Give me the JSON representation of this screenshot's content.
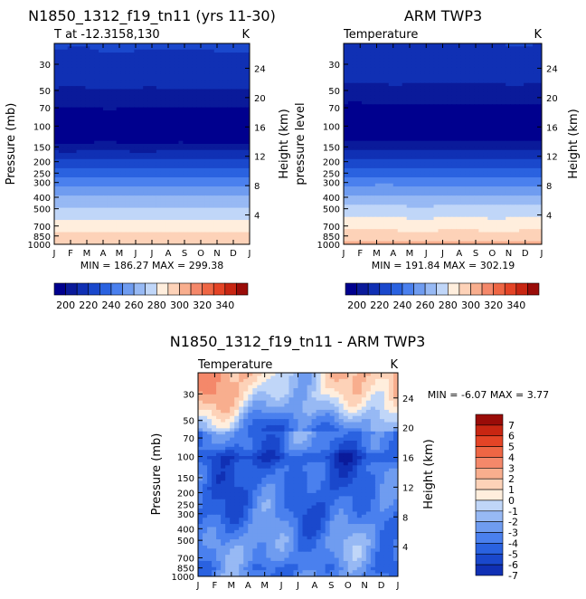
{
  "chart_data": [
    {
      "type": "heatmap",
      "title": "N1850_1312_f19_tn11 (yrs 11-30)",
      "subtitle_left": "T at -12.3158,130",
      "subtitle_right": "K",
      "xlabel": "",
      "ylabel": "Pressure (mb)",
      "ylabel_right": "Height (km)",
      "x_ticks": [
        "J",
        "F",
        "M",
        "A",
        "M",
        "J",
        "J",
        "A",
        "S",
        "O",
        "N",
        "D",
        "J"
      ],
      "y_ticks": [
        30,
        50,
        70,
        100,
        150,
        200,
        250,
        300,
        400,
        500,
        700,
        850,
        1000
      ],
      "height_ticks": [
        24,
        20,
        16,
        12,
        8,
        4
      ],
      "ylim": [
        1000,
        20
      ],
      "min_max": "MIN = 186.27 MAX = 299.38",
      "colorbar_labels": [
        "200",
        "220",
        "240",
        "260",
        "280",
        "300",
        "320",
        "340"
      ],
      "levels": [
        190,
        200,
        210,
        220,
        230,
        240,
        250,
        260,
        270,
        280,
        290,
        300,
        310,
        320,
        330,
        340,
        350
      ],
      "palette": [
        "#00008e",
        "#0a1a9a",
        "#1030b4",
        "#1a48cc",
        "#2a62e0",
        "#4a80ee",
        "#6f9cf0",
        "#97b9f4",
        "#c0d6f8",
        "#ffeedd",
        "#fdd2b8",
        "#f8ae8e",
        "#f4886a",
        "#ee6644",
        "#e44426",
        "#c82612",
        "#9a0c08"
      ],
      "profile_pressure": [
        20,
        30,
        40,
        50,
        60,
        70,
        85,
        100,
        125,
        150,
        175,
        200,
        225,
        250,
        275,
        300,
        350,
        400,
        450,
        500,
        600,
        700,
        800,
        850,
        925,
        1000
      ],
      "profile_values": [
        221,
        218,
        214,
        209,
        205,
        200,
        196,
        192,
        194,
        205,
        214,
        222,
        228,
        235,
        240,
        246,
        254,
        261,
        266,
        272,
        278,
        284,
        290,
        293,
        297,
        299
      ]
    },
    {
      "type": "heatmap",
      "title": "ARM TWP3",
      "subtitle_left": "Temperature",
      "subtitle_right": "K",
      "xlabel": "",
      "ylabel": "pressure level",
      "ylabel_right": "Height (km)",
      "x_ticks": [
        "J",
        "F",
        "M",
        "A",
        "M",
        "J",
        "J",
        "A",
        "S",
        "O",
        "N",
        "D",
        "J"
      ],
      "y_ticks": [
        30,
        50,
        70,
        100,
        150,
        200,
        250,
        300,
        400,
        500,
        700,
        850,
        1000
      ],
      "height_ticks": [
        24,
        20,
        16,
        12,
        8,
        4
      ],
      "ylim": [
        1000,
        20
      ],
      "min_max": "MIN = 191.84 MAX = 302.19",
      "colorbar_labels": [
        "200",
        "220",
        "240",
        "260",
        "280",
        "300",
        "320",
        "340"
      ],
      "levels": [
        190,
        200,
        210,
        220,
        230,
        240,
        250,
        260,
        270,
        280,
        290,
        300,
        310,
        320,
        330,
        340,
        350
      ],
      "palette": [
        "#00008e",
        "#0a1a9a",
        "#1030b4",
        "#1a48cc",
        "#2a62e0",
        "#4a80ee",
        "#6f9cf0",
        "#97b9f4",
        "#c0d6f8",
        "#ffeedd",
        "#fdd2b8",
        "#f8ae8e",
        "#f4886a",
        "#ee6644",
        "#e44426",
        "#c82612",
        "#9a0c08"
      ],
      "profile_pressure": [
        20,
        30,
        40,
        50,
        60,
        70,
        85,
        100,
        125,
        150,
        175,
        200,
        225,
        250,
        275,
        300,
        350,
        400,
        450,
        500,
        600,
        700,
        800,
        850,
        925,
        1000
      ],
      "profile_values": [
        220,
        216,
        212,
        207,
        202,
        198,
        195,
        194,
        197,
        206,
        215,
        223,
        229,
        236,
        241,
        247,
        255,
        262,
        267,
        273,
        280,
        286,
        292,
        296,
        299,
        302
      ]
    },
    {
      "type": "heatmap",
      "title": "N1850_1312_f19_tn11 - ARM TWP3",
      "subtitle_left": "Temperature",
      "subtitle_right": "K",
      "xlabel": "",
      "ylabel": "Pressure (mb)",
      "ylabel_right": "Height (km)",
      "x_ticks": [
        "J",
        "F",
        "M",
        "A",
        "M",
        "J",
        "J",
        "A",
        "S",
        "O",
        "N",
        "D",
        "J"
      ],
      "y_ticks": [
        30,
        50,
        70,
        100,
        150,
        200,
        250,
        300,
        400,
        500,
        700,
        850,
        1000
      ],
      "height_ticks": [
        24,
        20,
        16,
        12,
        8,
        4
      ],
      "ylim": [
        1000,
        20
      ],
      "min_max": "MIN =   -6.07 MAX =    3.77",
      "colorbar_labels": [
        "7",
        "6",
        "5",
        "4",
        "3",
        "2",
        "1",
        "0",
        "-1",
        "-2",
        "-3",
        "-4",
        "-5",
        "-6",
        "-7"
      ],
      "levels": [
        -8,
        -7,
        -6,
        -5,
        -4,
        -3,
        -2,
        -1,
        0,
        1,
        2,
        3,
        4,
        5,
        6,
        7,
        8
      ],
      "palette": [
        "#00008e",
        "#0a1a9a",
        "#1030b4",
        "#1a48cc",
        "#2a62e0",
        "#4a80ee",
        "#6f9cf0",
        "#97b9f4",
        "#c0d6f8",
        "#ffeedd",
        "#fdd2b8",
        "#f8ae8e",
        "#f4886a",
        "#ee6644",
        "#e44426",
        "#c82612",
        "#9a0c08"
      ],
      "profile_pressure": [
        20,
        30,
        40,
        50,
        60,
        70,
        85,
        100,
        125,
        150,
        200,
        250,
        300,
        400,
        500,
        700,
        850,
        1000
      ],
      "profile_values": [
        2.4,
        1.6,
        0.3,
        -1.2,
        -2.2,
        -2.6,
        -3.0,
        -4.6,
        -3.4,
        -3.4,
        -3.2,
        -3.0,
        -3.0,
        -2.4,
        -1.9,
        -1.8,
        -2.6,
        -2.2
      ]
    }
  ]
}
